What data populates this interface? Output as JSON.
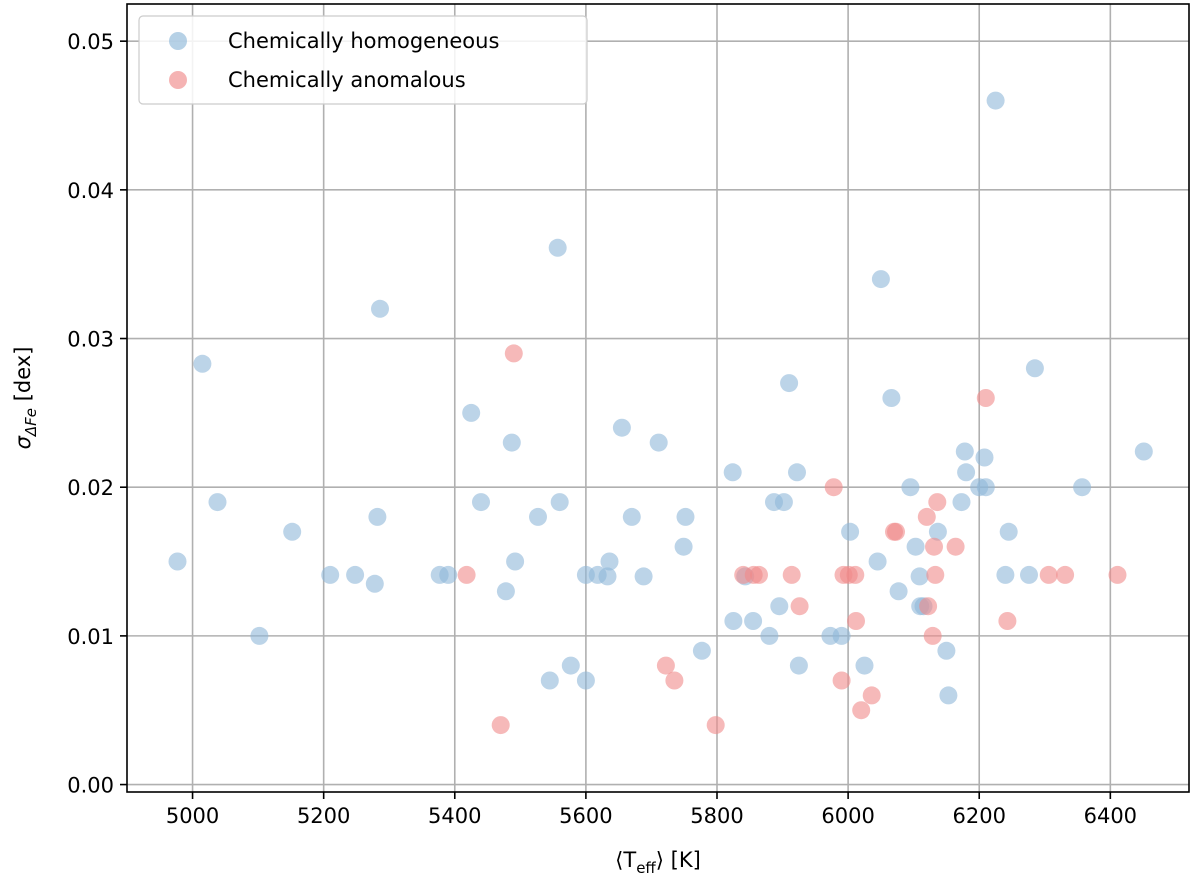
{
  "chart_data": {
    "type": "scatter",
    "xlabel": "⟨T_eff⟩ [K]",
    "xlabel_parts": {
      "open": "⟨T",
      "sub": "eff",
      "close": "⟩ [K]"
    },
    "ylabel": "σ_ΔFe [dex]",
    "ylabel_parts": {
      "main": "σ",
      "sub": "ΔFe",
      "unit": " [dex]"
    },
    "xlim": [
      4900,
      6520
    ],
    "ylim": [
      -0.0005,
      0.0525
    ],
    "xticks": [
      5000,
      5200,
      5400,
      5600,
      5800,
      6000,
      6200,
      6400
    ],
    "xtick_labels": [
      "5000",
      "5200",
      "5400",
      "5600",
      "5800",
      "6000",
      "6200",
      "6400"
    ],
    "yticks": [
      0.0,
      0.01,
      0.02,
      0.03,
      0.04,
      0.05
    ],
    "ytick_labels": [
      "0.00",
      "0.01",
      "0.02",
      "0.03",
      "0.04",
      "0.05"
    ],
    "grid": true,
    "legend_position": "top-left",
    "series": [
      {
        "name": "Chemically homogeneous",
        "color": "#8fb8d8",
        "points": [
          [
            4977,
            0.015
          ],
          [
            5015,
            0.0283
          ],
          [
            5038,
            0.019
          ],
          [
            5102,
            0.01
          ],
          [
            5152,
            0.017
          ],
          [
            5210,
            0.0141
          ],
          [
            5248,
            0.0141
          ],
          [
            5278,
            0.0135
          ],
          [
            5282,
            0.018
          ],
          [
            5286,
            0.032
          ],
          [
            5377,
            0.0141
          ],
          [
            5390,
            0.0141
          ],
          [
            5425,
            0.025
          ],
          [
            5440,
            0.019
          ],
          [
            5478,
            0.013
          ],
          [
            5487,
            0.023
          ],
          [
            5492,
            0.015
          ],
          [
            5527,
            0.018
          ],
          [
            5545,
            0.007
          ],
          [
            5557,
            0.0361
          ],
          [
            5560,
            0.019
          ],
          [
            5577,
            0.008
          ],
          [
            5600,
            0.007
          ],
          [
            5600,
            0.0141
          ],
          [
            5618,
            0.0141
          ],
          [
            5633,
            0.014
          ],
          [
            5636,
            0.015
          ],
          [
            5655,
            0.024
          ],
          [
            5670,
            0.018
          ],
          [
            5688,
            0.014
          ],
          [
            5711,
            0.023
          ],
          [
            5749,
            0.016
          ],
          [
            5752,
            0.018
          ],
          [
            5777,
            0.009
          ],
          [
            5824,
            0.021
          ],
          [
            5825,
            0.011
          ],
          [
            5843,
            0.014
          ],
          [
            5855,
            0.011
          ],
          [
            5880,
            0.01
          ],
          [
            5887,
            0.019
          ],
          [
            5895,
            0.012
          ],
          [
            5902,
            0.019
          ],
          [
            5910,
            0.027
          ],
          [
            5922,
            0.021
          ],
          [
            5925,
            0.008
          ],
          [
            5973,
            0.01
          ],
          [
            5990,
            0.01
          ],
          [
            6003,
            0.017
          ],
          [
            6025,
            0.008
          ],
          [
            6045,
            0.015
          ],
          [
            6050,
            0.034
          ],
          [
            6066,
            0.026
          ],
          [
            6077,
            0.013
          ],
          [
            6095,
            0.02
          ],
          [
            6103,
            0.016
          ],
          [
            6109,
            0.014
          ],
          [
            6110,
            0.012
          ],
          [
            6115,
            0.012
          ],
          [
            6137,
            0.017
          ],
          [
            6150,
            0.009
          ],
          [
            6153,
            0.006
          ],
          [
            6173,
            0.019
          ],
          [
            6178,
            0.0224
          ],
          [
            6180,
            0.021
          ],
          [
            6200,
            0.02
          ],
          [
            6208,
            0.022
          ],
          [
            6210,
            0.02
          ],
          [
            6225,
            0.046
          ],
          [
            6240,
            0.0141
          ],
          [
            6245,
            0.017
          ],
          [
            6276,
            0.0141
          ],
          [
            6285,
            0.028
          ],
          [
            6357,
            0.02
          ],
          [
            6451,
            0.0224
          ]
        ]
      },
      {
        "name": "Chemically anomalous",
        "color": "#f08a8a",
        "points": [
          [
            5418,
            0.0141
          ],
          [
            5470,
            0.004
          ],
          [
            5490,
            0.029
          ],
          [
            5722,
            0.008
          ],
          [
            5735,
            0.007
          ],
          [
            5798,
            0.004
          ],
          [
            5840,
            0.0141
          ],
          [
            5856,
            0.0141
          ],
          [
            5864,
            0.0141
          ],
          [
            5914,
            0.0141
          ],
          [
            5926,
            0.012
          ],
          [
            5978,
            0.02
          ],
          [
            5990,
            0.007
          ],
          [
            5993,
            0.0141
          ],
          [
            6001,
            0.0141
          ],
          [
            6011,
            0.0141
          ],
          [
            6012,
            0.011
          ],
          [
            6020,
            0.005
          ],
          [
            6036,
            0.006
          ],
          [
            6070,
            0.017
          ],
          [
            6073,
            0.017
          ],
          [
            6120,
            0.018
          ],
          [
            6122,
            0.012
          ],
          [
            6129,
            0.01
          ],
          [
            6131,
            0.016
          ],
          [
            6133,
            0.0141
          ],
          [
            6136,
            0.019
          ],
          [
            6164,
            0.016
          ],
          [
            6210,
            0.026
          ],
          [
            6243,
            0.011
          ],
          [
            6306,
            0.0141
          ],
          [
            6331,
            0.0141
          ],
          [
            6411,
            0.0141
          ]
        ]
      }
    ]
  }
}
